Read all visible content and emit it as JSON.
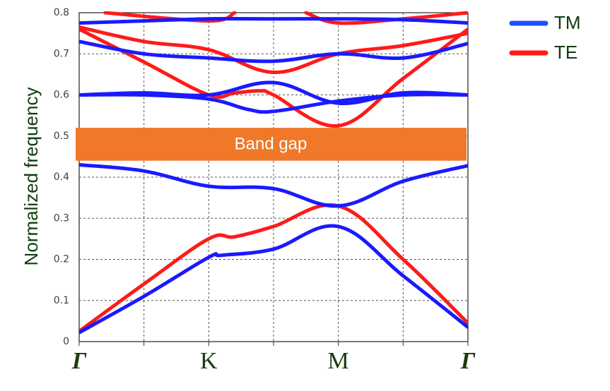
{
  "chart_data": {
    "type": "line",
    "title": "",
    "xlabel": "",
    "ylabel": "Normalized frequency",
    "ylim": [
      0,
      0.8
    ],
    "yticks": [
      "0",
      "0.1",
      "0.2",
      "0.3",
      "0.4",
      "0.5",
      "0.6",
      "0.7",
      "0.8"
    ],
    "x_ticks": [
      "Γ",
      "K",
      "M",
      "Γ"
    ],
    "grid": true,
    "legend": {
      "position": "top-right",
      "entries": [
        {
          "label": "TM",
          "color": "#1e4fff"
        },
        {
          "label": "TE",
          "color": "#ff1a1a"
        }
      ]
    },
    "annotation": {
      "label": "Band gap",
      "y_range": [
        0.44,
        0.52
      ],
      "color": "#f07828"
    },
    "series": [
      {
        "name": "TM",
        "color": "#1a1aff",
        "bands": [
          [
            [
              0,
              0.022
            ],
            [
              0.5,
              0.11
            ],
            [
              1,
              0.205
            ],
            [
              1.1,
              0.21
            ],
            [
              1.5,
              0.225
            ],
            [
              2,
              0.28
            ],
            [
              2.5,
              0.16
            ],
            [
              3,
              0.035
            ]
          ],
          [
            [
              0,
              0.43
            ],
            [
              0.5,
              0.415
            ],
            [
              1,
              0.378
            ],
            [
              1.5,
              0.372
            ],
            [
              2,
              0.33
            ],
            [
              2.5,
              0.39
            ],
            [
              3,
              0.428
            ]
          ],
          [
            [
              0,
              0.6
            ],
            [
              0.5,
              0.6
            ],
            [
              1,
              0.59
            ],
            [
              1.3,
              0.565
            ],
            [
              1.5,
              0.56
            ],
            [
              2,
              0.585
            ],
            [
              2.5,
              0.6
            ],
            [
              3,
              0.6
            ]
          ],
          [
            [
              0,
              0.6
            ],
            [
              0.5,
              0.605
            ],
            [
              1,
              0.6
            ],
            [
              1.5,
              0.63
            ],
            [
              2,
              0.58
            ],
            [
              2.5,
              0.605
            ],
            [
              3,
              0.6
            ]
          ],
          [
            [
              0,
              0.73
            ],
            [
              0.5,
              0.7
            ],
            [
              1,
              0.69
            ],
            [
              1.5,
              0.682
            ],
            [
              2,
              0.7
            ],
            [
              2.5,
              0.69
            ],
            [
              3,
              0.725
            ]
          ],
          [
            [
              0,
              0.775
            ],
            [
              0.5,
              0.78
            ],
            [
              1,
              0.785
            ],
            [
              1.5,
              0.785
            ],
            [
              2,
              0.785
            ],
            [
              2.5,
              0.783
            ],
            [
              3,
              0.775
            ]
          ]
        ]
      },
      {
        "name": "TE",
        "color": "#ff1a1a",
        "bands": [
          [
            [
              0,
              0.025
            ],
            [
              0.5,
              0.14
            ],
            [
              1,
              0.25
            ],
            [
              1.2,
              0.255
            ],
            [
              1.5,
              0.28
            ],
            [
              2,
              0.33
            ],
            [
              2.5,
              0.2
            ],
            [
              3,
              0.045
            ]
          ],
          [
            [
              0,
              0.76
            ],
            [
              0.5,
              0.68
            ],
            [
              1,
              0.6
            ],
            [
              1.2,
              0.605
            ],
            [
              1.4,
              0.61
            ],
            [
              1.5,
              0.6
            ],
            [
              2,
              0.525
            ],
            [
              2.5,
              0.64
            ],
            [
              3,
              0.76
            ]
          ],
          [
            [
              0,
              0.765
            ],
            [
              0.5,
              0.73
            ],
            [
              1,
              0.71
            ],
            [
              1.5,
              0.655
            ],
            [
              2,
              0.7
            ],
            [
              2.5,
              0.72
            ],
            [
              3,
              0.75
            ]
          ],
          [
            [
              0.2,
              0.8
            ],
            [
              1,
              0.78
            ],
            [
              1.2,
              0.8
            ]
          ],
          [
            [
              1.75,
              0.8
            ],
            [
              2,
              0.775
            ],
            [
              2.5,
              0.785
            ],
            [
              3,
              0.8
            ]
          ]
        ]
      }
    ]
  }
}
